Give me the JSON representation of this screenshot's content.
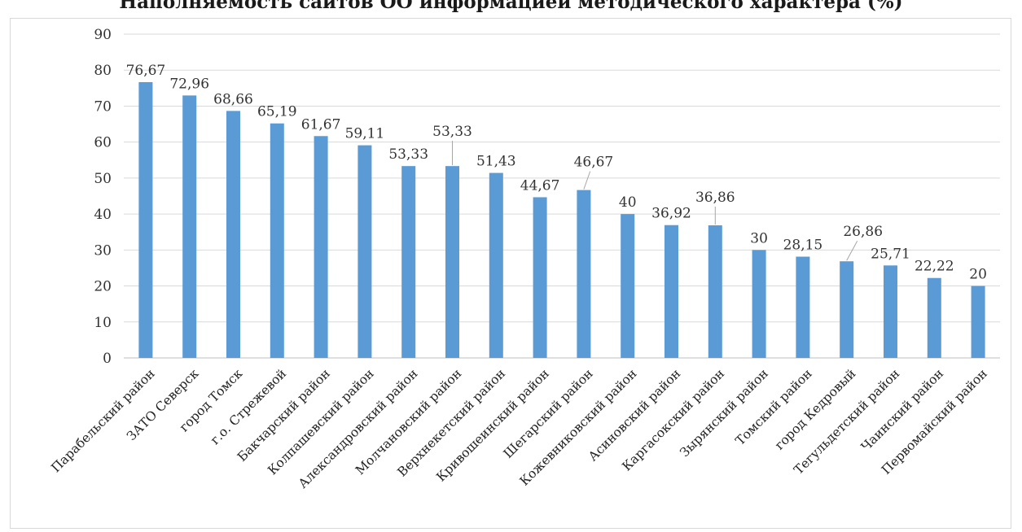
{
  "chart_data": {
    "type": "bar",
    "title": "Наполняемость сайтов ОО информацией методического характера (%)",
    "xlabel": "",
    "ylabel": "",
    "ylim": [
      0,
      90
    ],
    "yticks": [
      0,
      10,
      20,
      30,
      40,
      50,
      60,
      70,
      80,
      90
    ],
    "grid": true,
    "legend": "none",
    "bar_color": "#5b9bd5",
    "categories": [
      "Парабельский район",
      "ЗАТО Северск",
      "город Томск",
      "г.о. Стрежевой",
      "Бакчарский район",
      "Колпашевский район",
      "Александровский район",
      "Молчановский район",
      "Верхнекетский район",
      "Кривошеинский район",
      "Шегарский район",
      "Кожевниковский район",
      "Асиновский район",
      "Каргасокский район",
      "Зырянский район",
      "Томский район",
      "город Кедровый",
      "Тегульдетский район",
      "Чаинский район",
      "Первомайский район"
    ],
    "values": [
      76.67,
      72.96,
      68.66,
      65.19,
      61.67,
      59.11,
      53.33,
      53.33,
      51.43,
      44.67,
      46.67,
      40,
      36.92,
      36.86,
      30,
      28.15,
      26.86,
      25.71,
      22.22,
      20
    ],
    "data_labels": [
      "76,67",
      "72,96",
      "68,66",
      "65,19",
      "61,67",
      "59,11",
      "53,33",
      "53,33",
      "51,43",
      "44,67",
      "46,67",
      "40",
      "36,92",
      "36,86",
      "30",
      "28,15",
      "26,86",
      "25,71",
      "22,22",
      "20"
    ]
  }
}
